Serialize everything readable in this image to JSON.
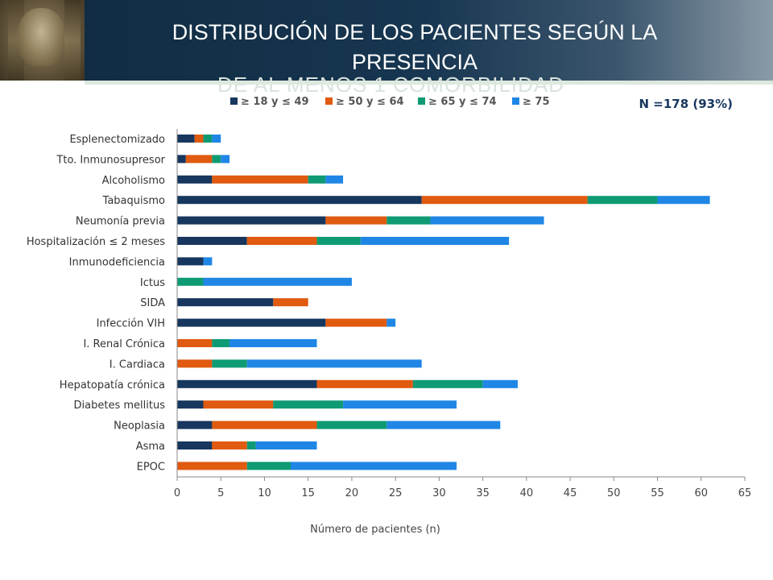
{
  "header": {
    "title": "DISTRIBUCIÓN DE LOS PACIENTES SEGÚN LA PRESENCIA",
    "subtitle_partial": "DE AL MENOS 1 COMORBILIDAD"
  },
  "chart_data": {
    "type": "bar",
    "orientation": "horizontal",
    "stacked": true,
    "categories": [
      "Esplenectomizado",
      "Tto. Inmunosupresor",
      "Alcoholismo",
      "Tabaquismo",
      "Neumonía previa",
      "Hospitalización  ≤ 2 meses",
      "Inmunodeficiencia",
      "Ictus",
      "SIDA",
      "Infección VIH",
      "I. Renal Crónica",
      "I. Cardiaca",
      "Hepatopatía crónica",
      "Diabetes mellitus",
      "Neoplasia",
      "Asma",
      "EPOC"
    ],
    "series": [
      {
        "name": "≥ 18 y ≤ 49",
        "color": "#17375e",
        "values": [
          2,
          1,
          4,
          28,
          17,
          8,
          3,
          0,
          11,
          17,
          0,
          0,
          16,
          3,
          4,
          4,
          0
        ]
      },
      {
        "name": "≥ 50 y ≤ 64",
        "color": "#e05a10",
        "values": [
          1,
          3,
          11,
          19,
          7,
          8,
          0,
          0,
          4,
          7,
          4,
          4,
          11,
          8,
          12,
          4,
          8
        ]
      },
      {
        "name": "≥ 65 y ≤ 74",
        "color": "#0e9b74",
        "values": [
          1,
          1,
          2,
          8,
          5,
          5,
          0,
          3,
          0,
          0,
          2,
          4,
          8,
          8,
          8,
          1,
          5
        ]
      },
      {
        "name": "≥ 75",
        "color": "#1f86e6",
        "values": [
          1,
          1,
          2,
          6,
          13,
          17,
          1,
          17,
          0,
          1,
          10,
          20,
          4,
          13,
          13,
          7,
          19
        ]
      }
    ],
    "xlabel": "Número de pacientes (n)",
    "ylabel": "",
    "xlim": [
      0,
      65
    ],
    "xticks": [
      0,
      5,
      10,
      15,
      20,
      25,
      30,
      35,
      40,
      45,
      50,
      55,
      60,
      65
    ],
    "grid": false,
    "legend": "top",
    "annotation": "N =178 (93%)"
  }
}
